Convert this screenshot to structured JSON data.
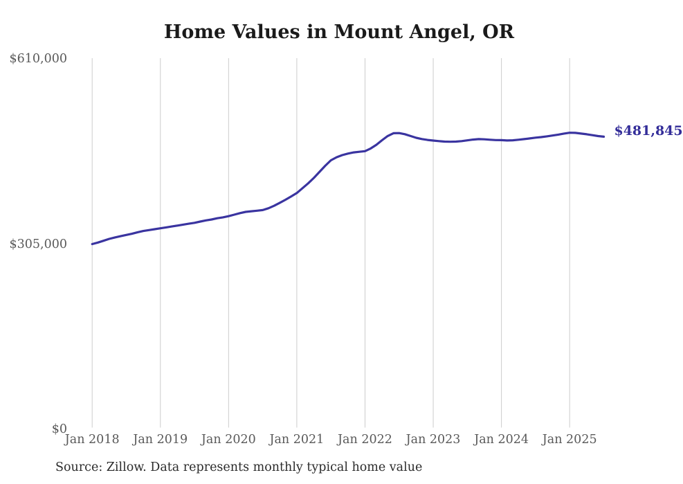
{
  "title": "Home Values in Mount Angel, OR",
  "source_note": "Source: Zillow. Data represents monthly typical home value",
  "latest_value_label": "$481,845",
  "colors": {
    "background": "#ffffff",
    "line": "#3a34a0",
    "latest_value_label": "#332d99",
    "grid": "#cccccc",
    "tick_text": "#595959",
    "title_text": "#1a1a1a",
    "source_text": "#2b2b2b"
  },
  "chart_data": {
    "type": "line",
    "title": "Home Values in Mount Angel, OR",
    "xlabel": "",
    "ylabel": "",
    "ylim": [
      0,
      610000
    ],
    "y_ticks": [
      0,
      305000,
      610000
    ],
    "y_tick_labels": [
      "$0",
      "$305,000",
      "$610,000"
    ],
    "x_tick_labels": [
      "Jan 2018",
      "Jan 2019",
      "Jan 2020",
      "Jan 2021",
      "Jan 2022",
      "Jan 2023",
      "Jan 2024",
      "Jan 2025"
    ],
    "grid": "vertical-only",
    "legend": "none",
    "annotation": "$481,845",
    "series": [
      {
        "name": "Monthly typical home value",
        "start_month": "2018-01",
        "end_month": "2025-07",
        "points_per_year": 12,
        "end_value": 481845,
        "values": [
          305000,
          307500,
          310500,
          313500,
          316000,
          318000,
          320000,
          322000,
          324500,
          326500,
          328000,
          329500,
          331000,
          332500,
          334000,
          335500,
          337000,
          338500,
          340000,
          342000,
          344000,
          345500,
          347500,
          349000,
          351000,
          353500,
          356000,
          358000,
          359000,
          360000,
          361000,
          364000,
          368000,
          373000,
          378000,
          383500,
          389000,
          397000,
          405000,
          414000,
          424000,
          434000,
          443000,
          448000,
          451500,
          454000,
          456000,
          457000,
          458000,
          462500,
          468500,
          476000,
          483000,
          487500,
          487800,
          486000,
          483000,
          480000,
          478000,
          476500,
          475500,
          474500,
          473800,
          473500,
          473800,
          474500,
          475800,
          477000,
          477800,
          477500,
          476800,
          476300,
          476100,
          475600,
          475900,
          476800,
          477800,
          479000,
          480200,
          481200,
          482400,
          483800,
          485300,
          487000,
          488300,
          488100,
          487000,
          485800,
          484300,
          482900,
          481845
        ]
      }
    ]
  }
}
